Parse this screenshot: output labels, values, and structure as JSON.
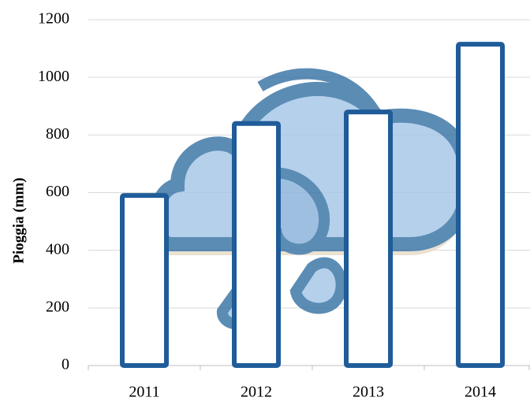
{
  "chart_data": {
    "type": "bar",
    "y_label": "Pioggia (mm)",
    "categories": [
      "2011",
      "2012",
      "2013",
      "2014"
    ],
    "values": [
      590,
      840,
      880,
      1115
    ],
    "color": "#1f5c99",
    "fill": "#ffffff",
    "ylim": [
      0,
      1200
    ],
    "yticks": [
      0,
      200,
      400,
      600,
      800,
      1000,
      1200
    ],
    "grid": true
  }
}
